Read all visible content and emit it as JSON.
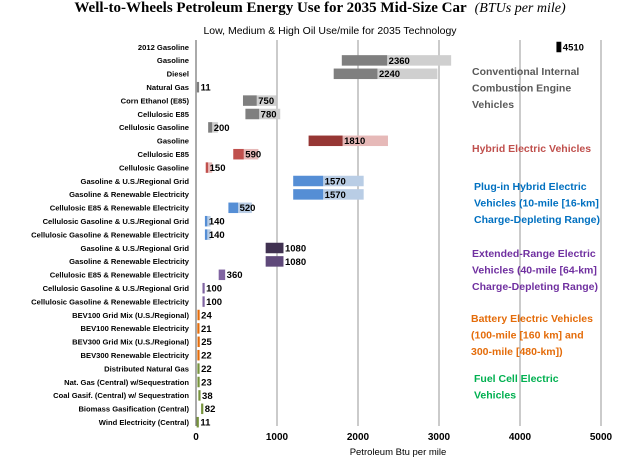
{
  "chart_data": {
    "type": "bar",
    "orientation": "horizontal",
    "title": "Well-to-Wheels Petroleum Energy Use for 2035 Mid-Size Car",
    "title_unit": "(BTUs per mile)",
    "subtitle": "Low, Medium & High Oil Use/mile for 2035 Technology",
    "xlabel": "Petroleum Btu per mile",
    "xlim": [
      0,
      5000
    ],
    "xticks": [
      "0",
      "1000",
      "2000",
      "3000",
      "4000",
      "5000"
    ],
    "grid": "vertical",
    "legend": "none",
    "series_note": "Each bar spans low to high oil use; the darker segment spans low to medium (labelled value).",
    "rows": [
      {
        "category": "2012 Gasoline",
        "low": 4450,
        "mid": 4510,
        "high": 4510,
        "label": "4510",
        "color": "#000000",
        "light": "#000000"
      },
      {
        "category": "Gasoline",
        "low": 1800,
        "mid": 2360,
        "high": 3150,
        "label": "2360",
        "color": "#7f7f7f",
        "light": "#cfcfcf"
      },
      {
        "category": "Diesel",
        "low": 1700,
        "mid": 2240,
        "high": 2980,
        "label": "2240",
        "color": "#7f7f7f",
        "light": "#cfcfcf"
      },
      {
        "category": "Natural Gas",
        "low": 11,
        "mid": 11,
        "high": 11,
        "label": "11",
        "color": "#7f7f7f",
        "light": "#cfcfcf"
      },
      {
        "category": "Corn Ethanol (E85)",
        "low": 580,
        "mid": 750,
        "high": 990,
        "label": "750",
        "color": "#7f7f7f",
        "light": "#cfcfcf"
      },
      {
        "category": "Cellulosic E85",
        "low": 610,
        "mid": 780,
        "high": 1040,
        "label": "780",
        "color": "#7f7f7f",
        "light": "#cfcfcf"
      },
      {
        "category": "Cellulosic Gasoline",
        "low": 150,
        "mid": 200,
        "high": 270,
        "label": "200",
        "color": "#7f7f7f",
        "light": "#cfcfcf"
      },
      {
        "category": "Gasoline",
        "low": 1390,
        "mid": 1810,
        "high": 2370,
        "label": "1810",
        "color": "#963634",
        "light": "#e6b9b8"
      },
      {
        "category": "Cellulosic E85",
        "low": 460,
        "mid": 590,
        "high": 770,
        "label": "590",
        "color": "#c0504d",
        "light": "#e6b9b8"
      },
      {
        "category": "Cellulosic Gasoline",
        "low": 120,
        "mid": 150,
        "high": 200,
        "label": "150",
        "color": "#c0504d",
        "light": "#e6b9b8"
      },
      {
        "category": "Gasoline & U.S./Regional Grid",
        "low": 1200,
        "mid": 1570,
        "high": 2070,
        "label": "1570",
        "color": "#558ed5",
        "light": "#b9cde5"
      },
      {
        "category": "Gasoline & Renewable Electricity",
        "low": 1200,
        "mid": 1570,
        "high": 2070,
        "label": "1570",
        "color": "#558ed5",
        "light": "#b9cde5"
      },
      {
        "category": "Cellulosic E85 & Renewable Electricity",
        "low": 400,
        "mid": 520,
        "high": 690,
        "label": "520",
        "color": "#558ed5",
        "light": "#b9cde5"
      },
      {
        "category": "Cellulosic Gasoline & U.S./Regional Grid",
        "low": 110,
        "mid": 140,
        "high": 180,
        "label": "140",
        "color": "#558ed5",
        "light": "#b9cde5"
      },
      {
        "category": "Cellulosic Gasoline & Renewable Electricity",
        "low": 110,
        "mid": 140,
        "high": 180,
        "label": "140",
        "color": "#558ed5",
        "light": "#b9cde5"
      },
      {
        "category": "Gasoline & U.S./Regional Grid",
        "low": 860,
        "mid": 1080,
        "high": 1080,
        "label": "1080",
        "color": "#403151",
        "light": "#b3a2c7"
      },
      {
        "category": "Gasoline & Renewable Electricity",
        "low": 860,
        "mid": 1080,
        "high": 1080,
        "label": "1080",
        "color": "#5f497a",
        "light": "#b3a2c7"
      },
      {
        "category": "Cellulosic E85 & Renewable Electricity",
        "low": 280,
        "mid": 360,
        "high": 360,
        "label": "360",
        "color": "#8064a2",
        "light": "#b3a2c7"
      },
      {
        "category": "Cellulosic Gasoline & U.S./Regional Grid",
        "low": 80,
        "mid": 100,
        "high": 100,
        "label": "100",
        "color": "#8064a2",
        "light": "#b3a2c7"
      },
      {
        "category": "Cellulosic Gasoline & Renewable Electricity",
        "low": 80,
        "mid": 100,
        "high": 100,
        "label": "100",
        "color": "#8064a2",
        "light": "#b3a2c7"
      },
      {
        "category": "BEV100 Grid Mix (U.S./Regional)",
        "low": 18,
        "mid": 24,
        "high": 24,
        "label": "24",
        "color": "#e46c0a",
        "light": "#fcd5b5"
      },
      {
        "category": "BEV100 Renewable Electricity",
        "low": 16,
        "mid": 21,
        "high": 21,
        "label": "21",
        "color": "#e46c0a",
        "light": "#fcd5b5"
      },
      {
        "category": "BEV300 Grid Mix (U.S./Regional)",
        "low": 19,
        "mid": 25,
        "high": 25,
        "label": "25",
        "color": "#e46c0a",
        "light": "#fcd5b5"
      },
      {
        "category": "BEV300 Renewable Electricity",
        "low": 17,
        "mid": 22,
        "high": 22,
        "label": "22",
        "color": "#e46c0a",
        "light": "#fcd5b5"
      },
      {
        "category": "Distributed Natural Gas",
        "low": 17,
        "mid": 22,
        "high": 22,
        "label": "22",
        "color": "#77933c",
        "light": "#d7e4bd"
      },
      {
        "category": "Nat. Gas (Central) w/Sequestration",
        "low": 18,
        "mid": 23,
        "high": 23,
        "label": "23",
        "color": "#77933c",
        "light": "#d7e4bd"
      },
      {
        "category": "Coal Gasif. (Central) w/ Sequestration",
        "low": 29,
        "mid": 38,
        "high": 38,
        "label": "38",
        "color": "#77933c",
        "light": "#d7e4bd"
      },
      {
        "category": "Biomass Gasification (Central)",
        "low": 63,
        "mid": 82,
        "high": 82,
        "label": "82",
        "color": "#77933c",
        "light": "#d7e4bd"
      },
      {
        "category": "Wind Electricity (Central)",
        "low": 8,
        "mid": 11,
        "high": 11,
        "label": "11",
        "color": "#77933c",
        "light": "#d7e4bd"
      }
    ],
    "groups": [
      {
        "name": "Conventional Internal Combustion Engine Vehicles",
        "lines": [
          "Conventional Internal",
          "Combustion Engine",
          "Vehicles"
        ],
        "color": "#595959"
      },
      {
        "name": "Hybrid Electric Vehicles",
        "lines": [
          "Hybrid Electric Vehicles"
        ],
        "color": "#c0504d"
      },
      {
        "name": "Plug-in Hybrid Electric Vehicles (10-mile [16-km] Charge-Depleting Range)",
        "lines": [
          "Plug-in Hybrid Electric",
          "Vehicles (10-mile [16-km]",
          "Charge-Depleting Range)"
        ],
        "color": "#0070c0"
      },
      {
        "name": "Extended-Range Electric Vehicles (40-mile [64-km] Charge-Depleting Range)",
        "lines": [
          "Extended-Range Electric",
          "Vehicles (40-mile [64-km]",
          "Charge-Depleting Range)"
        ],
        "color": "#7030a0"
      },
      {
        "name": "Battery Electric Vehicles (100-mile [160 km] and 300-mile [480-km])",
        "lines": [
          "Battery Electric Vehicles",
          "(100-mile [160 km] and",
          "300-mile [480-km])"
        ],
        "color": "#e46c0a"
      },
      {
        "name": "Fuel Cell Electric Vehicles",
        "lines": [
          "Fuel Cell Electric",
          "Vehicles"
        ],
        "color": "#00b050"
      }
    ]
  }
}
